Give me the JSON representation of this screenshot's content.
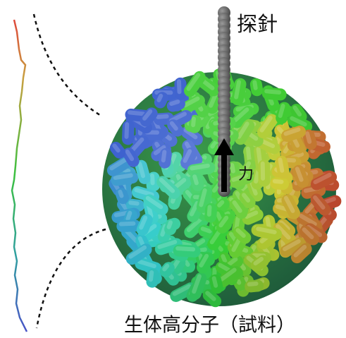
{
  "labels": {
    "probe": "探針",
    "force": "力",
    "sample": "生体高分子（試料）"
  }
}
